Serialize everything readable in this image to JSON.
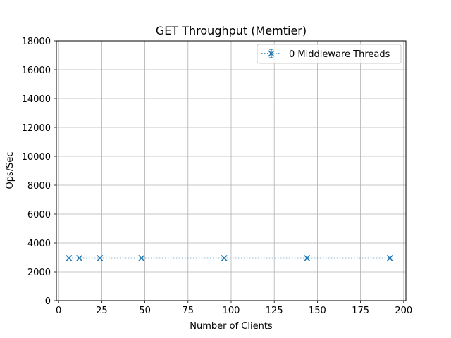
{
  "chart_data": {
    "type": "line",
    "title": "GET Throughput (Memtier)",
    "xlabel": "Number of Clients",
    "ylabel": "Ops/Sec",
    "xlim": [
      -1.3,
      201.3
    ],
    "ylim": [
      0,
      18000
    ],
    "x_ticks": [
      0,
      25,
      50,
      75,
      100,
      125,
      150,
      175,
      200
    ],
    "y_ticks": [
      0,
      2000,
      4000,
      6000,
      8000,
      10000,
      12000,
      14000,
      16000,
      18000
    ],
    "grid": true,
    "legend_position": "top-right",
    "x": [
      6,
      12,
      24,
      48,
      96,
      144,
      192
    ],
    "series": [
      {
        "name": "0 Middleware Threads",
        "values": [
          2950,
          2950,
          2950,
          2950,
          2950,
          2950,
          2950
        ],
        "color": "#1f77b4",
        "marker": "x",
        "line_style": "dotted"
      }
    ]
  }
}
